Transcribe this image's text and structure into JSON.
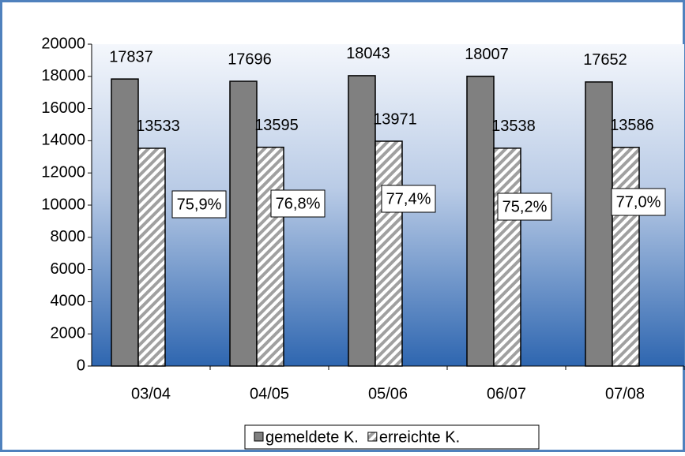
{
  "chart_data": {
    "type": "bar",
    "categories": [
      "03/04",
      "04/05",
      "05/06",
      "06/07",
      "07/08"
    ],
    "series": [
      {
        "name": "gemeldete K.",
        "color": "#808080",
        "values": [
          17837,
          17696,
          18043,
          18007,
          17652
        ]
      },
      {
        "name": "erreichte K.",
        "color": "hatch",
        "values": [
          13533,
          13595,
          13971,
          13538,
          13586
        ]
      }
    ],
    "annotations": [
      "75,9%",
      "76,8%",
      "77,4%",
      "75,2%",
      "77,0%"
    ],
    "ylim": [
      0,
      20000
    ],
    "yticks": [
      0,
      2000,
      4000,
      6000,
      8000,
      10000,
      12000,
      14000,
      16000,
      18000,
      20000
    ],
    "legend": "bottom"
  }
}
